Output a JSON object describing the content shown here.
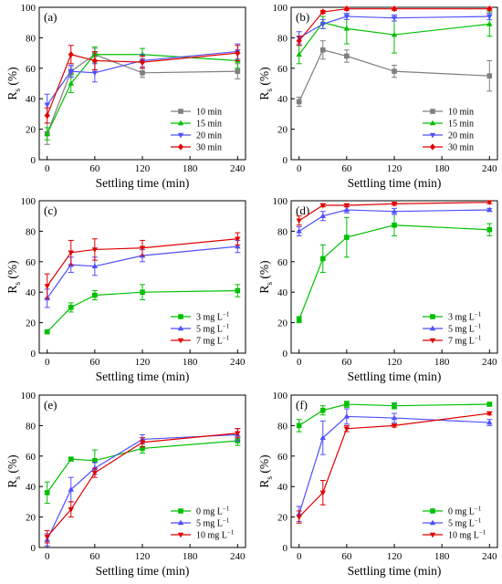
{
  "x_ticks": [
    0,
    60,
    120,
    180,
    240
  ],
  "xlabel": "Settling time (min)",
  "ylabel_main": "R",
  "ylabel_sub": "s",
  "ylabel_unit": "(%)",
  "colors": {
    "black": "#7f7f7f",
    "green": "#00c000",
    "blue": "#4f4fff",
    "red": "#e00000"
  },
  "chart_data": [
    {
      "id": "a",
      "panel_label": "(a)",
      "type": "line",
      "x": [
        0,
        30,
        60,
        120,
        240
      ],
      "ylim": [
        0,
        100
      ],
      "yticks": [
        0,
        20,
        40,
        60,
        80,
        100
      ],
      "legend_position": "bottom-right",
      "series": [
        {
          "name": "10 min",
          "color": "#7f7f7f",
          "marker": "square",
          "values": [
            17,
            58,
            69,
            57,
            58
          ],
          "errors": [
            7,
            3,
            4,
            3,
            5
          ]
        },
        {
          "name": "15 min",
          "color": "#00c000",
          "marker": "triangle-up",
          "values": [
            17,
            50,
            69,
            69,
            65
          ],
          "errors": [
            4,
            6,
            5,
            4,
            5
          ]
        },
        {
          "name": "20 min",
          "color": "#4f4fff",
          "marker": "triangle-down",
          "values": [
            36,
            58,
            57,
            65,
            71
          ],
          "errors": [
            7,
            4,
            6,
            4,
            5
          ]
        },
        {
          "name": "30 min",
          "color": "#e00000",
          "marker": "diamond",
          "values": [
            29,
            69,
            65,
            64,
            70
          ],
          "errors": [
            5,
            6,
            6,
            4,
            5
          ]
        }
      ]
    },
    {
      "id": "b",
      "panel_label": "(b)",
      "type": "line",
      "x": [
        0,
        30,
        60,
        120,
        240
      ],
      "ylim": [
        0,
        100
      ],
      "yticks": [
        0,
        20,
        40,
        60,
        80,
        100
      ],
      "legend_position": "bottom-right",
      "series": [
        {
          "name": "10 min",
          "color": "#7f7f7f",
          "marker": "square",
          "values": [
            38,
            72,
            68,
            58,
            55
          ],
          "errors": [
            3,
            6,
            4,
            4,
            10
          ]
        },
        {
          "name": "15 min",
          "color": "#00c000",
          "marker": "triangle-up",
          "values": [
            69,
            90,
            86,
            82,
            89
          ],
          "errors": [
            6,
            4,
            10,
            12,
            8
          ]
        },
        {
          "name": "20 min",
          "color": "#4f4fff",
          "marker": "triangle-down",
          "values": [
            80,
            89,
            94,
            93,
            94
          ],
          "errors": [
            4,
            3,
            2,
            2,
            2
          ]
        },
        {
          "name": "30 min",
          "color": "#e00000",
          "marker": "diamond",
          "values": [
            78,
            97,
            99,
            99,
            99
          ],
          "errors": [
            3,
            1,
            1,
            1,
            1
          ]
        }
      ]
    },
    {
      "id": "c",
      "panel_label": "(c)",
      "type": "line",
      "x": [
        0,
        30,
        60,
        120,
        240
      ],
      "ylim": [
        0,
        100
      ],
      "yticks": [
        0,
        20,
        40,
        60,
        80,
        100
      ],
      "legend_position": "bottom-right",
      "series": [
        {
          "name": "3 mg L",
          "sup": "−1",
          "color": "#00c000",
          "marker": "square",
          "values": [
            14,
            30,
            38,
            40,
            41
          ],
          "errors": [
            1,
            3,
            3,
            5,
            4
          ]
        },
        {
          "name": "5 mg L",
          "sup": "−1",
          "color": "#4f4fff",
          "marker": "triangle-up",
          "values": [
            36,
            58,
            57,
            64,
            70
          ],
          "errors": [
            6,
            5,
            6,
            4,
            4
          ]
        },
        {
          "name": "7 mg L",
          "sup": "−1",
          "color": "#e00000",
          "marker": "triangle-down",
          "values": [
            44,
            66,
            68,
            69,
            75
          ],
          "errors": [
            8,
            8,
            7,
            5,
            4
          ]
        }
      ]
    },
    {
      "id": "d",
      "panel_label": "(d)",
      "type": "line",
      "x": [
        0,
        30,
        60,
        120,
        240
      ],
      "ylim": [
        0,
        100
      ],
      "yticks": [
        0,
        20,
        40,
        60,
        80,
        100
      ],
      "legend_position": "bottom-right",
      "series": [
        {
          "name": "3 mg L",
          "sup": "−1",
          "color": "#00c000",
          "marker": "square",
          "values": [
            22,
            62,
            76,
            84,
            81
          ],
          "errors": [
            2,
            9,
            13,
            7,
            4
          ]
        },
        {
          "name": "5 mg L",
          "sup": "−1",
          "color": "#4f4fff",
          "marker": "triangle-up",
          "values": [
            80,
            90,
            94,
            93,
            94
          ],
          "errors": [
            3,
            3,
            2,
            2,
            1
          ]
        },
        {
          "name": "7 mg L",
          "sup": "−1",
          "color": "#e00000",
          "marker": "triangle-down",
          "values": [
            87,
            97,
            97,
            98,
            99
          ],
          "errors": [
            3,
            1,
            1,
            1,
            1
          ]
        }
      ]
    },
    {
      "id": "e",
      "panel_label": "(e)",
      "type": "line",
      "x": [
        0,
        30,
        60,
        120,
        240
      ],
      "ylim": [
        0,
        100
      ],
      "yticks": [
        0,
        20,
        40,
        60,
        80,
        100
      ],
      "legend_position": "bottom-right",
      "series": [
        {
          "name": "0 mg L",
          "sup": "−1",
          "color": "#00c000",
          "marker": "square",
          "values": [
            36,
            58,
            57,
            65,
            70
          ],
          "errors": [
            7,
            1,
            7,
            3,
            3
          ]
        },
        {
          "name": "5 mg L",
          "sup": "−1",
          "color": "#4f4fff",
          "marker": "triangle-up",
          "values": [
            5,
            38,
            52,
            71,
            74
          ],
          "errors": [
            4,
            8,
            4,
            3,
            4
          ]
        },
        {
          "name": "10 mg L",
          "sup": "−1",
          "color": "#e00000",
          "marker": "triangle-down",
          "values": [
            7,
            25,
            49,
            69,
            75
          ],
          "errors": [
            4,
            5,
            3,
            3,
            3
          ]
        }
      ]
    },
    {
      "id": "f",
      "panel_label": "(f)",
      "type": "line",
      "x": [
        0,
        30,
        60,
        120,
        240
      ],
      "ylim": [
        0,
        100
      ],
      "yticks": [
        0,
        20,
        40,
        60,
        80,
        100
      ],
      "legend_position": "bottom-right",
      "series": [
        {
          "name": "0 mg L",
          "sup": "−1",
          "color": "#00c000",
          "marker": "square",
          "values": [
            80,
            90,
            94,
            93,
            94
          ],
          "errors": [
            4,
            3,
            2,
            2,
            1
          ]
        },
        {
          "name": "5 mg L",
          "sup": "−1",
          "color": "#4f4fff",
          "marker": "triangle-up",
          "values": [
            22,
            72,
            86,
            85,
            82
          ],
          "errors": [
            5,
            11,
            5,
            3,
            2
          ]
        },
        {
          "name": "10 mg L",
          "sup": "−1",
          "color": "#e00000",
          "marker": "triangle-down",
          "values": [
            20,
            36,
            78,
            80,
            88
          ],
          "errors": [
            4,
            8,
            2,
            1,
            1
          ]
        }
      ]
    }
  ]
}
